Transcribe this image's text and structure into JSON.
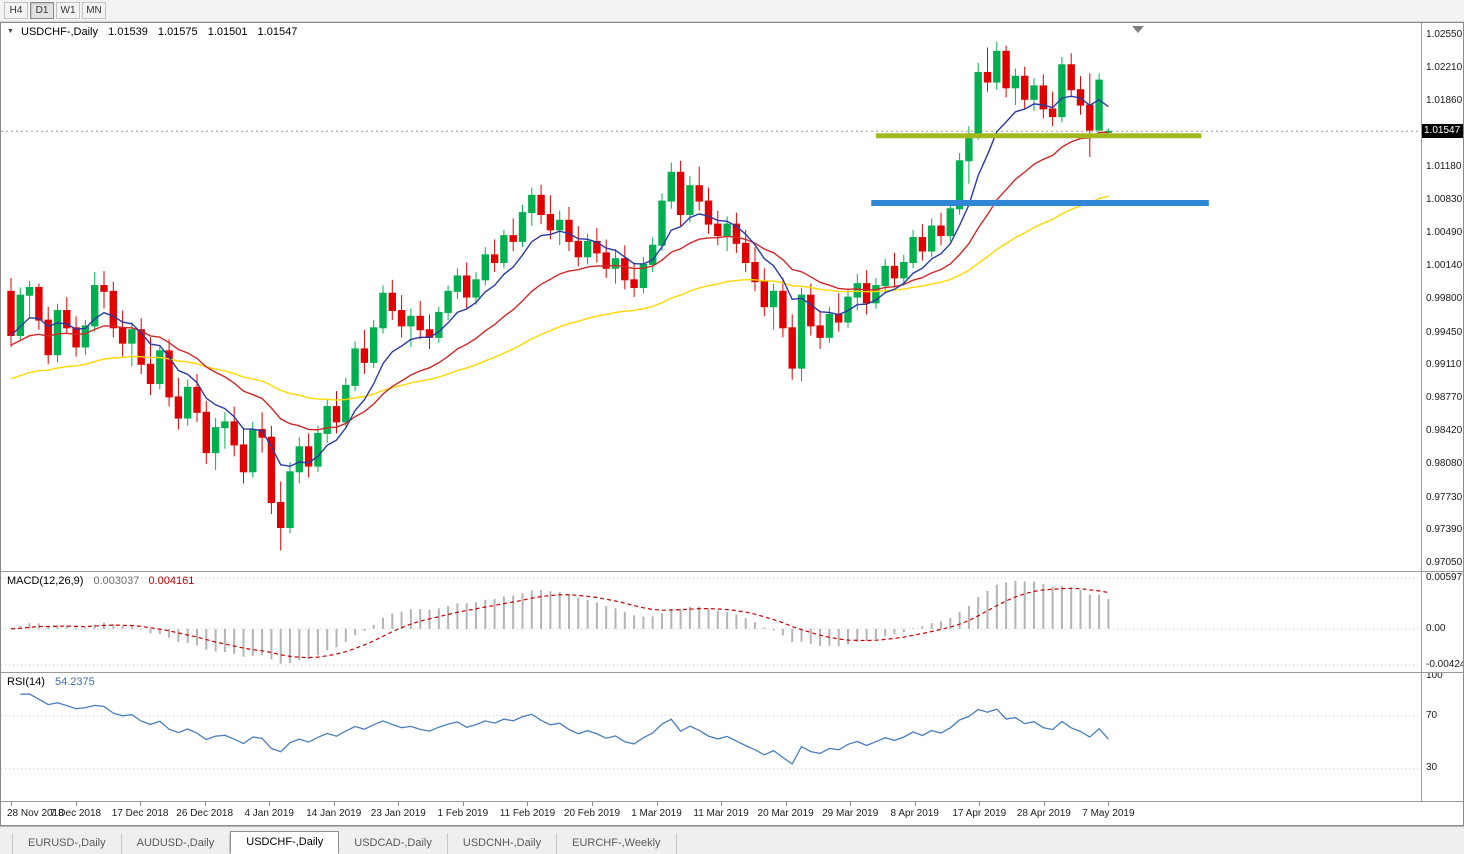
{
  "toolbar": {
    "timeframes": [
      {
        "label": "H4",
        "active": false
      },
      {
        "label": "D1",
        "active": true
      },
      {
        "label": "W1",
        "active": false
      },
      {
        "label": "MN",
        "active": false
      }
    ]
  },
  "title": {
    "symbol": "USDCHF-,Daily",
    "open": "1.01539",
    "high": "1.01575",
    "low": "1.01501",
    "close": "1.01547"
  },
  "chart_data": {
    "type": "candlestick",
    "symbol": "USDCHF-",
    "timeframe": "Daily",
    "price_axis": {
      "max": 1.0255,
      "min": 0.9705,
      "labels": [
        "1.02550",
        "1.02210",
        "1.01860",
        "1.01180",
        "1.00830",
        "1.00490",
        "1.00140",
        "0.99800",
        "0.99450",
        "0.99110",
        "0.98770",
        "0.98420",
        "0.98080",
        "0.97730",
        "0.97390",
        "0.97050"
      ],
      "current_price": "1.01547",
      "current_price_value": 1.01547
    },
    "x_labels": [
      "28 Nov 2018",
      "7 Dec 2018",
      "17 Dec 2018",
      "26 Dec 2018",
      "4 Jan 2019",
      "14 Jan 2019",
      "23 Jan 2019",
      "1 Feb 2019",
      "11 Feb 2019",
      "20 Feb 2019",
      "1 Mar 2019",
      "11 Mar 2019",
      "20 Mar 2019",
      "29 Mar 2019",
      "8 Apr 2019",
      "17 Apr 2019",
      "28 Apr 2019",
      "7 May 2019"
    ],
    "up_color": "#00b050",
    "down_color": "#e00000",
    "moving_averages": [
      {
        "period": 8,
        "color": "#2a3aa5"
      },
      {
        "period": 21,
        "color": "#d02828"
      },
      {
        "period": 55,
        "color": "#ffd800"
      }
    ],
    "drawn_objects": [
      {
        "type": "horizontal-ray",
        "price": 1.015,
        "from_index": 93,
        "to_index": 128,
        "color": "#a2b81e",
        "thickness": 5
      },
      {
        "type": "horizontal-ray",
        "price": 1.008,
        "from_index": 92.5,
        "to_index": 128.8,
        "color": "#2e86d5",
        "thickness": 6
      }
    ],
    "indicators": {
      "macd": {
        "label": "MACD(12,26,9)",
        "value": "0.003037",
        "signal_value": "0.004161",
        "params": {
          "fast": 12,
          "slow": 26,
          "signal": 9
        },
        "axis_labels": [
          {
            "text": "0.00597",
            "value": 0.00597
          },
          {
            "text": "0.00",
            "value": 0
          },
          {
            "text": "-0.00424",
            "value": -0.00424
          }
        ],
        "histogram_color": "#b4b4b4",
        "signal_color": "#cc0000"
      },
      "rsi": {
        "label": "RSI(14)",
        "value": "54.2375",
        "period": 14,
        "levels": [
          70,
          30
        ],
        "axis_labels": [
          {
            "text": "100",
            "value": 100
          },
          {
            "text": "70",
            "value": 70
          },
          {
            "text": "30",
            "value": 30
          }
        ],
        "line_color": "#4a7ebd"
      }
    },
    "candles": [
      [
        0.9988,
        1.0002,
        0.993,
        0.9942
      ],
      [
        0.9942,
        0.9992,
        0.9936,
        0.9984
      ],
      [
        0.9984,
        0.9999,
        0.996,
        0.9992
      ],
      [
        0.9992,
        0.9996,
        0.9948,
        0.9958
      ],
      [
        0.9958,
        0.9972,
        0.9912,
        0.9922
      ],
      [
        0.9922,
        0.9975,
        0.9914,
        0.9968
      ],
      [
        0.9968,
        0.9982,
        0.9944,
        0.995
      ],
      [
        0.995,
        0.9962,
        0.992,
        0.993
      ],
      [
        0.993,
        0.9958,
        0.9922,
        0.9952
      ],
      [
        0.9952,
        1.0008,
        0.9946,
        0.9994
      ],
      [
        0.9994,
        1.0009,
        0.997,
        0.9988
      ],
      [
        0.9988,
        0.9998,
        0.994,
        0.995
      ],
      [
        0.995,
        0.9968,
        0.992,
        0.9934
      ],
      [
        0.9934,
        0.9956,
        0.991,
        0.9948
      ],
      [
        0.9948,
        0.996,
        0.9902,
        0.9912
      ],
      [
        0.9912,
        0.994,
        0.988,
        0.9892
      ],
      [
        0.9892,
        0.9932,
        0.9886,
        0.9926
      ],
      [
        0.9926,
        0.9938,
        0.9868,
        0.9878
      ],
      [
        0.9878,
        0.9898,
        0.9844,
        0.9856
      ],
      [
        0.9856,
        0.9896,
        0.9848,
        0.9888
      ],
      [
        0.9888,
        0.9902,
        0.9852,
        0.9862
      ],
      [
        0.9862,
        0.9874,
        0.9808,
        0.982
      ],
      [
        0.982,
        0.9856,
        0.9802,
        0.9846
      ],
      [
        0.9846,
        0.9862,
        0.9824,
        0.9852
      ],
      [
        0.9852,
        0.9868,
        0.9816,
        0.9828
      ],
      [
        0.9828,
        0.9846,
        0.9788,
        0.98
      ],
      [
        0.98,
        0.9852,
        0.9794,
        0.9844
      ],
      [
        0.9844,
        0.9862,
        0.982,
        0.9836
      ],
      [
        0.9836,
        0.9848,
        0.9756,
        0.9768
      ],
      [
        0.9768,
        0.979,
        0.9718,
        0.9742
      ],
      [
        0.9742,
        0.981,
        0.9736,
        0.98
      ],
      [
        0.98,
        0.9836,
        0.9788,
        0.9826
      ],
      [
        0.9826,
        0.984,
        0.9794,
        0.9806
      ],
      [
        0.9806,
        0.9848,
        0.98,
        0.984
      ],
      [
        0.984,
        0.9876,
        0.983,
        0.9868
      ],
      [
        0.9868,
        0.9884,
        0.984,
        0.9852
      ],
      [
        0.9852,
        0.9898,
        0.9846,
        0.989
      ],
      [
        0.989,
        0.9936,
        0.9884,
        0.9928
      ],
      [
        0.9928,
        0.9948,
        0.9902,
        0.9914
      ],
      [
        0.9914,
        0.9958,
        0.9908,
        0.995
      ],
      [
        0.995,
        0.9994,
        0.9944,
        0.9986
      ],
      [
        0.9986,
        1.0,
        0.9958,
        0.9968
      ],
      [
        0.9968,
        0.9984,
        0.994,
        0.9952
      ],
      [
        0.9952,
        0.997,
        0.993,
        0.9962
      ],
      [
        0.9962,
        0.9978,
        0.9938,
        0.9948
      ],
      [
        0.9948,
        0.9964,
        0.9928,
        0.994
      ],
      [
        0.994,
        0.9972,
        0.9934,
        0.9966
      ],
      [
        0.9966,
        0.9994,
        0.9958,
        0.9988
      ],
      [
        0.9988,
        1.0012,
        0.998,
        1.0004
      ],
      [
        1.0004,
        1.0018,
        0.997,
        0.9982
      ],
      [
        0.9982,
        1.0008,
        0.9974,
        1.0
      ],
      [
        1.0,
        1.0034,
        0.9994,
        1.0026
      ],
      [
        1.0026,
        1.0042,
        1.0008,
        1.0018
      ],
      [
        1.0018,
        1.0052,
        1.0012,
        1.0046
      ],
      [
        1.0046,
        1.0064,
        1.003,
        1.004
      ],
      [
        1.004,
        1.0078,
        1.0034,
        1.007
      ],
      [
        1.007,
        1.0096,
        1.0056,
        1.0088
      ],
      [
        1.0088,
        1.0099,
        1.0058,
        1.0068
      ],
      [
        1.0068,
        1.0088,
        1.0042,
        1.0052
      ],
      [
        1.0052,
        1.0072,
        1.0036,
        1.0062
      ],
      [
        1.0062,
        1.0076,
        1.003,
        1.004
      ],
      [
        1.004,
        1.0056,
        1.0014,
        1.0024
      ],
      [
        1.0024,
        1.0048,
        1.0016,
        1.004
      ],
      [
        1.004,
        1.0054,
        1.0018,
        1.0028
      ],
      [
        1.0028,
        1.0042,
        1.0002,
        1.0012
      ],
      [
        1.0012,
        1.0032,
        0.9996,
        1.0022
      ],
      [
        1.0022,
        1.0036,
        0.999,
        1.0
      ],
      [
        1.0,
        1.0018,
        0.9982,
        0.9992
      ],
      [
        0.9992,
        1.0024,
        0.9986,
        1.0016
      ],
      [
        1.0016,
        1.0044,
        1.0008,
        1.0036
      ],
      [
        1.0036,
        1.009,
        1.003,
        1.0082
      ],
      [
        1.0082,
        1.0122,
        1.0074,
        1.0112
      ],
      [
        1.0112,
        1.0124,
        1.0056,
        1.0068
      ],
      [
        1.0068,
        1.0108,
        1.006,
        1.0098
      ],
      [
        1.0098,
        1.0118,
        1.0072,
        1.0082
      ],
      [
        1.0082,
        1.0096,
        1.0048,
        1.0058
      ],
      [
        1.0058,
        1.0072,
        1.0036,
        1.0046
      ],
      [
        1.0046,
        1.0066,
        1.003,
        1.0058
      ],
      [
        1.0058,
        1.007,
        1.0028,
        1.0038
      ],
      [
        1.0038,
        1.0052,
        1.0008,
        1.0018
      ],
      [
        1.0018,
        1.0034,
        0.9988,
        0.9998
      ],
      [
        0.9998,
        1.0012,
        0.9962,
        0.9972
      ],
      [
        0.9972,
        0.9996,
        0.9948,
        0.9988
      ],
      [
        0.9988,
        1.0002,
        0.994,
        0.995
      ],
      [
        0.995,
        0.9964,
        0.9896,
        0.9908
      ],
      [
        0.9908,
        0.9992,
        0.9894,
        0.9984
      ],
      [
        0.9984,
        0.9996,
        0.9942,
        0.9952
      ],
      [
        0.9952,
        0.9968,
        0.9928,
        0.994
      ],
      [
        0.994,
        0.9972,
        0.9934,
        0.9964
      ],
      [
        0.9964,
        0.9986,
        0.9946,
        0.9956
      ],
      [
        0.9956,
        0.999,
        0.995,
        0.9982
      ],
      [
        0.9982,
        1.0006,
        0.9968,
        0.9996
      ],
      [
        0.9996,
        1.001,
        0.9964,
        0.9976
      ],
      [
        0.9976,
        1.0002,
        0.997,
        0.9994
      ],
      [
        0.9994,
        1.0022,
        0.9986,
        1.0014
      ],
      [
        1.0014,
        1.0028,
        0.9992,
        1.0002
      ],
      [
        1.0002,
        1.0026,
        0.9994,
        1.0018
      ],
      [
        1.0018,
        1.0052,
        1.0012,
        1.0044
      ],
      [
        1.0044,
        1.0058,
        1.002,
        1.003
      ],
      [
        1.003,
        1.0064,
        1.0024,
        1.0056
      ],
      [
        1.0056,
        1.007,
        1.0036,
        1.0046
      ],
      [
        1.0046,
        1.0082,
        1.004,
        1.0074
      ],
      [
        1.0074,
        1.0132,
        1.0068,
        1.0124
      ],
      [
        1.0124,
        1.016,
        1.01,
        1.0152
      ],
      [
        1.0152,
        1.0226,
        1.0146,
        1.0216
      ],
      [
        1.0216,
        1.0242,
        1.0196,
        1.0206
      ],
      [
        1.0206,
        1.0248,
        1.0198,
        1.0238
      ],
      [
        1.0238,
        1.0244,
        1.019,
        1.02
      ],
      [
        1.02,
        1.022,
        1.0182,
        1.0212
      ],
      [
        1.0212,
        1.0222,
        1.0178,
        1.0188
      ],
      [
        1.0188,
        1.021,
        1.0176,
        1.0202
      ],
      [
        1.0202,
        1.0214,
        1.0168,
        1.0178
      ],
      [
        1.0178,
        1.0196,
        1.016,
        1.017
      ],
      [
        1.017,
        1.0232,
        1.0164,
        1.0224
      ],
      [
        1.0224,
        1.0236,
        1.019,
        1.0198
      ],
      [
        1.0198,
        1.0212,
        1.0172,
        1.0182
      ],
      [
        1.0182,
        1.0215,
        1.0128,
        1.0156
      ],
      [
        1.0156,
        1.0215,
        1.015,
        1.0208
      ],
      [
        1.01539,
        1.01575,
        1.01501,
        1.01547
      ]
    ]
  },
  "tabs": [
    {
      "label": "EURUSD-,Daily",
      "active": false
    },
    {
      "label": "AUDUSD-,Daily",
      "active": false
    },
    {
      "label": "USDCHF-,Daily",
      "active": true
    },
    {
      "label": "USDCAD-,Daily",
      "active": false
    },
    {
      "label": "USDCNH-,Daily",
      "active": false
    },
    {
      "label": "EURCHF-,Weekly",
      "active": false
    }
  ]
}
